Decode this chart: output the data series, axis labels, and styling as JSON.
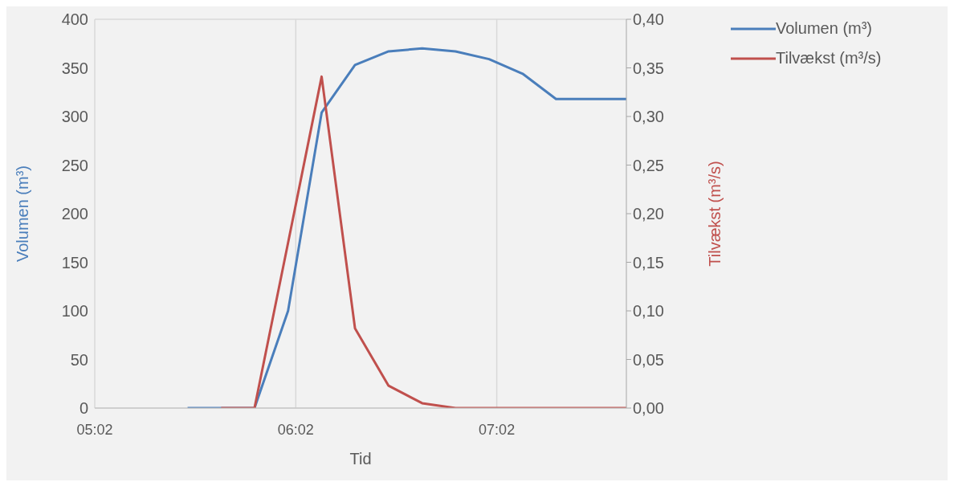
{
  "chart_data": {
    "type": "line",
    "xlabel": "Tid",
    "ylabel": "Volumen (m³)",
    "y2label": "Tilvækst (m³/s)",
    "x": [
      5.495,
      5.662,
      5.828,
      5.995,
      6.162,
      6.328,
      6.495,
      6.662,
      6.828,
      6.995,
      7.162,
      7.328,
      7.495,
      7.678
    ],
    "series": [
      {
        "name": "Volumen (m³)",
        "color": "#4a7ebb",
        "values": [
          0,
          0,
          0,
          100,
          304,
          353,
          367,
          370,
          367,
          359,
          344,
          318,
          318,
          318
        ]
      },
      {
        "name": "Tilvækst (m³/s)",
        "color": "#c0504d",
        "axis": "y2",
        "values": [
          null,
          0,
          0,
          0.17,
          0.341,
          0.082,
          0.023,
          0.005,
          0,
          0,
          0,
          0,
          0,
          0
        ]
      }
    ],
    "xlim": [
      5.0333,
      7.678
    ],
    "xticks": [
      {
        "value": 5.0333,
        "label": "05:02"
      },
      {
        "value": 6.0333,
        "label": "06:02"
      },
      {
        "value": 7.0333,
        "label": "07:02"
      }
    ],
    "ylim": [
      0,
      400
    ],
    "yticks": [
      0,
      50,
      100,
      150,
      200,
      250,
      300,
      350,
      400
    ],
    "y2lim": [
      0,
      0.4
    ],
    "y2ticks": [
      {
        "value": 0,
        "label": "0,00"
      },
      {
        "value": 0.05,
        "label": "0,05"
      },
      {
        "value": 0.1,
        "label": "0,10"
      },
      {
        "value": 0.15,
        "label": "0,15"
      },
      {
        "value": 0.2,
        "label": "0,20"
      },
      {
        "value": 0.25,
        "label": "0,25"
      },
      {
        "value": 0.3,
        "label": "0,30"
      },
      {
        "value": 0.35,
        "label": "0,35"
      },
      {
        "value": 0.4,
        "label": "0,40"
      }
    ],
    "grid": true,
    "legend": "top right",
    "marker": "none",
    "line_style": "solid"
  }
}
